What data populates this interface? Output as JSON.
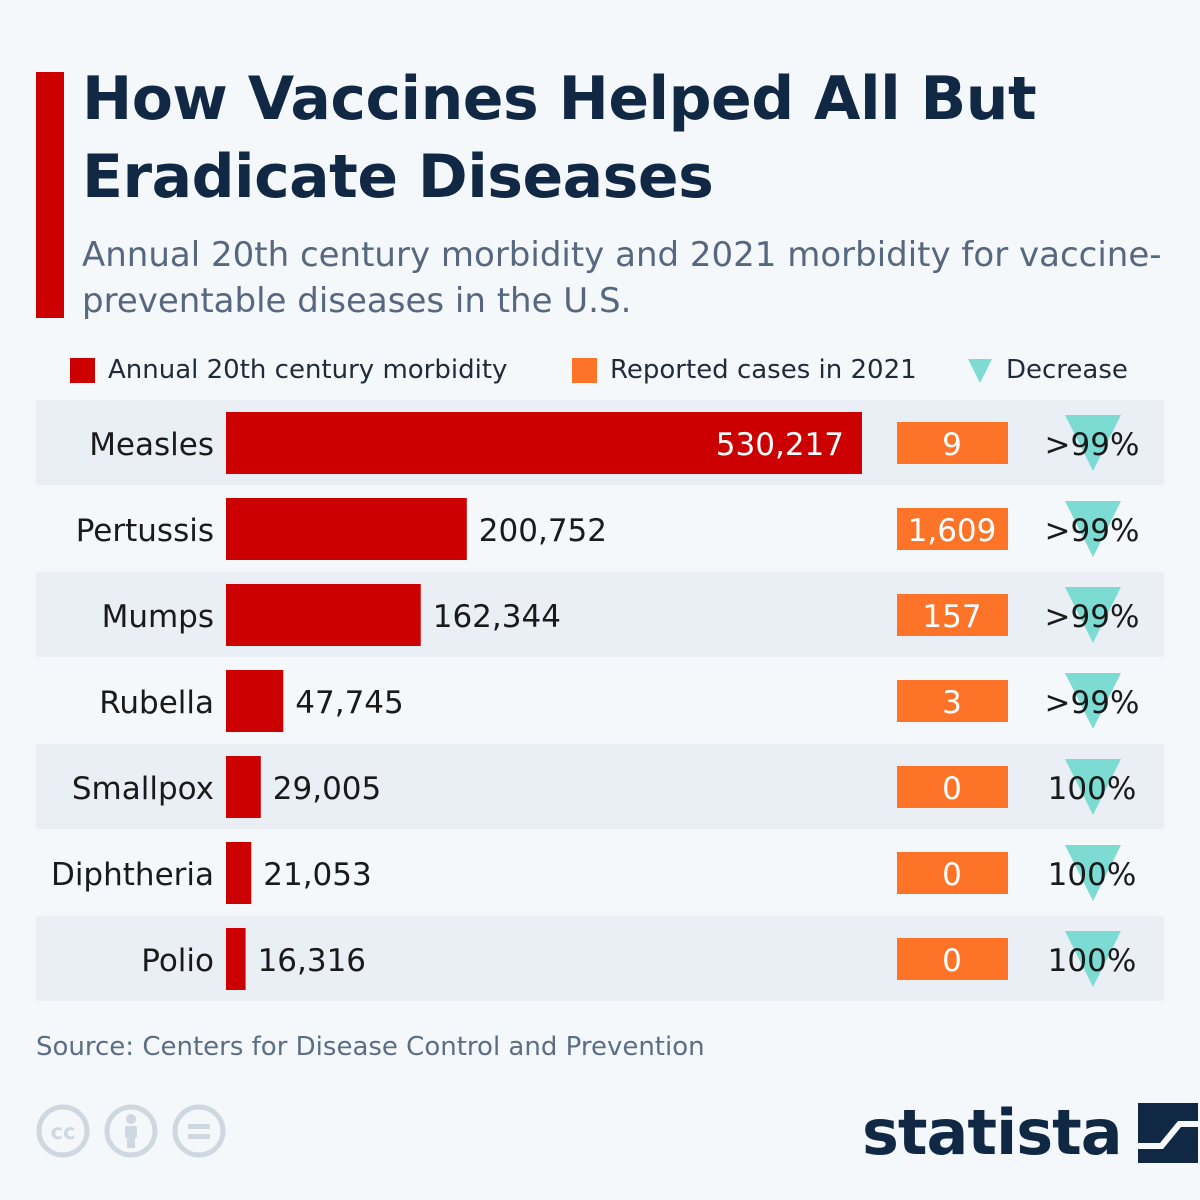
{
  "title": "How Vaccines Helped All But Eradicate Diseases",
  "subtitle": "Annual 20th century morbidity and 2021 morbidity for vaccine-preventable diseases in the U.S.",
  "legend": {
    "series1": "Annual 20th century morbidity",
    "series2": "Reported cases in 2021",
    "decrease": "Decrease"
  },
  "colors": {
    "series1": "#cc0000",
    "series2": "#fd7328",
    "decrease": "#7cdcd3",
    "row_band": "#eaeff6",
    "title": "#112845"
  },
  "chart_data": {
    "type": "bar",
    "orientation": "horizontal",
    "title": "How Vaccines Helped All But Eradicate Diseases",
    "categories": [
      "Measles",
      "Pertussis",
      "Mumps",
      "Rubella",
      "Smallpox",
      "Diphtheria",
      "Polio"
    ],
    "series": [
      {
        "name": "Annual 20th century morbidity",
        "values": [
          530217,
          200752,
          162344,
          47745,
          29005,
          21053,
          16316
        ],
        "labels": [
          "530,217",
          "200,752",
          "162,344",
          "47,745",
          "29,005",
          "21,053",
          "16,316"
        ]
      },
      {
        "name": "Reported cases in 2021",
        "values": [
          9,
          1609,
          157,
          3,
          0,
          0,
          0
        ],
        "labels": [
          "9",
          "1,609",
          "157",
          "3",
          "0",
          "0",
          "0"
        ]
      }
    ],
    "decrease_labels": [
      ">99%",
      ">99%",
      ">99%",
      ">99%",
      "100%",
      "100%",
      "100%"
    ],
    "xlim": [
      0,
      530217
    ],
    "grid": false,
    "legend": "top"
  },
  "source": "Source: Centers for Disease Control and Prevention",
  "brand": {
    "name": "statista"
  },
  "license_icons": [
    "creative-commons-icon",
    "attribution-icon",
    "no-derivatives-icon"
  ]
}
